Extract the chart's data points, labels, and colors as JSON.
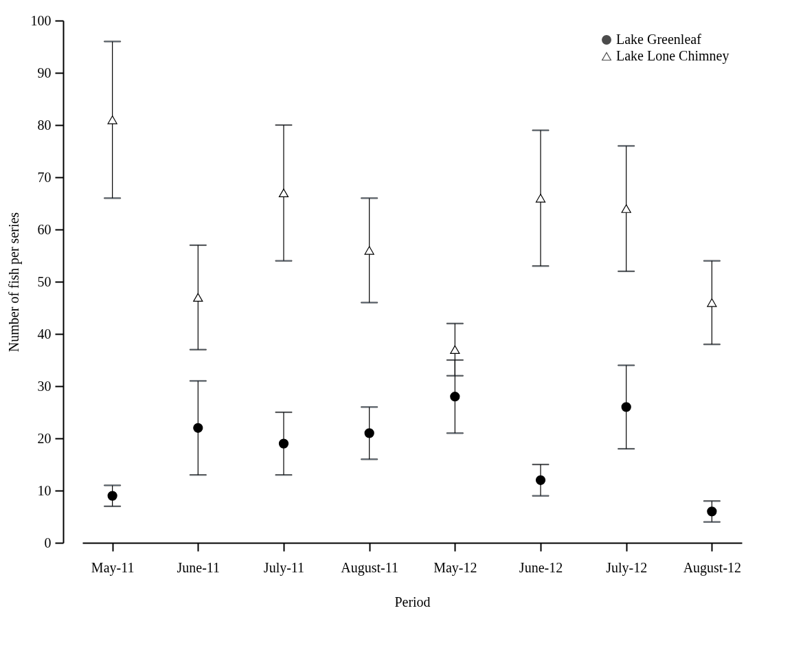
{
  "chart_data": {
    "type": "scatter",
    "xlabel": "Period",
    "ylabel": "Number of fish per series",
    "categories": [
      "May-11",
      "June-11",
      "July-11",
      "August-11",
      "May-12",
      "June-12",
      "July-12",
      "August-12"
    ],
    "series": [
      {
        "name": "Lake Greenleaf",
        "color": "#000000",
        "marker": "circle",
        "values": [
          9,
          22,
          19,
          21,
          28,
          12,
          26,
          6
        ],
        "errors": [
          [
            7,
            11
          ],
          [
            13,
            31
          ],
          [
            13,
            25
          ],
          [
            16,
            26
          ],
          [
            21,
            35
          ],
          [
            9,
            15
          ],
          [
            18,
            34
          ],
          [
            4,
            8
          ]
        ]
      },
      {
        "name": "Lake Lone Chimney",
        "color": "#000000",
        "marker": "triangle",
        "values": [
          81,
          47,
          67,
          56,
          37,
          66,
          64,
          46
        ],
        "errors": [
          [
            66,
            96
          ],
          [
            37,
            57
          ],
          [
            54,
            80
          ],
          [
            46,
            66
          ],
          [
            32,
            42
          ],
          [
            53,
            79
          ],
          [
            52,
            76
          ],
          [
            38,
            54
          ]
        ]
      }
    ],
    "ylim": [
      0,
      100
    ],
    "yticks": [
      0,
      10,
      20,
      30,
      40,
      50,
      60,
      70,
      80,
      90,
      100
    ],
    "grid": false,
    "legend": "top right"
  }
}
